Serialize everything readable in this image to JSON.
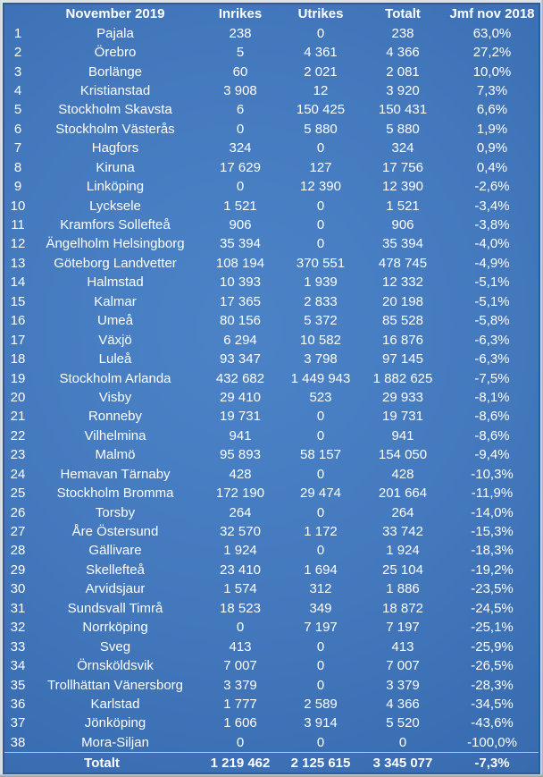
{
  "colors": {
    "table_fill_center": "#4c83c7",
    "table_fill_edge": "#33639f",
    "inner_border": "#2d5c9e",
    "outer_border": "#dce3ec",
    "text": "#ffffff"
  },
  "chart_data": {
    "type": "table",
    "title": "November 2019",
    "columns": [
      "",
      "November 2019",
      "Inrikes",
      "Utrikes",
      "Totalt",
      "Jmf nov 2018"
    ],
    "rows": [
      [
        "1",
        "Pajala",
        "238",
        "0",
        "238",
        "63,0%"
      ],
      [
        "2",
        "Örebro",
        "5",
        "4 361",
        "4 366",
        "27,2%"
      ],
      [
        "3",
        "Borlänge",
        "60",
        "2 021",
        "2 081",
        "10,0%"
      ],
      [
        "4",
        "Kristianstad",
        "3 908",
        "12",
        "3 920",
        "7,3%"
      ],
      [
        "5",
        "Stockholm Skavsta",
        "6",
        "150 425",
        "150 431",
        "6,6%"
      ],
      [
        "6",
        "Stockholm Västerås",
        "0",
        "5 880",
        "5 880",
        "1,9%"
      ],
      [
        "7",
        "Hagfors",
        "324",
        "0",
        "324",
        "0,9%"
      ],
      [
        "8",
        "Kiruna",
        "17 629",
        "127",
        "17 756",
        "0,4%"
      ],
      [
        "9",
        "Linköping",
        "0",
        "12 390",
        "12 390",
        "-2,6%"
      ],
      [
        "10",
        "Lycksele",
        "1 521",
        "0",
        "1 521",
        "-3,4%"
      ],
      [
        "11",
        "Kramfors Sollefteå",
        "906",
        "0",
        "906",
        "-3,8%"
      ],
      [
        "12",
        "Ängelholm Helsingborg",
        "35 394",
        "0",
        "35 394",
        "-4,0%"
      ],
      [
        "13",
        "Göteborg Landvetter",
        "108 194",
        "370 551",
        "478 745",
        "-4,9%"
      ],
      [
        "14",
        "Halmstad",
        "10 393",
        "1 939",
        "12 332",
        "-5,1%"
      ],
      [
        "15",
        "Kalmar",
        "17 365",
        "2 833",
        "20 198",
        "-5,1%"
      ],
      [
        "16",
        "Umeå",
        "80 156",
        "5 372",
        "85 528",
        "-5,8%"
      ],
      [
        "17",
        "Växjö",
        "6 294",
        "10 582",
        "16 876",
        "-6,3%"
      ],
      [
        "18",
        "Luleå",
        "93 347",
        "3 798",
        "97 145",
        "-6,3%"
      ],
      [
        "19",
        "Stockholm Arlanda",
        "432 682",
        "1 449 943",
        "1 882 625",
        "-7,5%"
      ],
      [
        "20",
        "Visby",
        "29 410",
        "523",
        "29 933",
        "-8,1%"
      ],
      [
        "21",
        "Ronneby",
        "19 731",
        "0",
        "19 731",
        "-8,6%"
      ],
      [
        "22",
        "Vilhelmina",
        "941",
        "0",
        "941",
        "-8,6%"
      ],
      [
        "23",
        "Malmö",
        "95 893",
        "58 157",
        "154 050",
        "-9,4%"
      ],
      [
        "24",
        "Hemavan Tärnaby",
        "428",
        "0",
        "428",
        "-10,3%"
      ],
      [
        "25",
        "Stockholm Bromma",
        "172 190",
        "29 474",
        "201 664",
        "-11,9%"
      ],
      [
        "26",
        "Torsby",
        "264",
        "0",
        "264",
        "-14,0%"
      ],
      [
        "27",
        "Åre Östersund",
        "32 570",
        "1 172",
        "33 742",
        "-15,3%"
      ],
      [
        "28",
        "Gällivare",
        "1 924",
        "0",
        "1 924",
        "-18,3%"
      ],
      [
        "29",
        "Skellefteå",
        "23 410",
        "1 694",
        "25 104",
        "-19,2%"
      ],
      [
        "30",
        "Arvidsjaur",
        "1 574",
        "312",
        "1 886",
        "-23,5%"
      ],
      [
        "31",
        "Sundsvall Timrå",
        "18 523",
        "349",
        "18 872",
        "-24,5%"
      ],
      [
        "32",
        "Norrköping",
        "0",
        "7 197",
        "7 197",
        "-25,1%"
      ],
      [
        "33",
        "Sveg",
        "413",
        "0",
        "413",
        "-25,9%"
      ],
      [
        "34",
        "Örnsköldsvik",
        "7 007",
        "0",
        "7 007",
        "-26,5%"
      ],
      [
        "35",
        "Trollhättan Vänersborg",
        "3 379",
        "0",
        "3 379",
        "-28,3%"
      ],
      [
        "36",
        "Karlstad",
        "1 777",
        "2 589",
        "4 366",
        "-34,5%"
      ],
      [
        "37",
        "Jönköping",
        "1 606",
        "3 914",
        "5 520",
        "-43,6%"
      ],
      [
        "38",
        "Mora-Siljan",
        "0",
        "0",
        "0",
        "-100,0%"
      ]
    ],
    "total_row": {
      "label": "Totalt",
      "inrikes": "1 219 462",
      "utrikes": "2 125 615",
      "totalt": "3 345 077",
      "jmf": "-7,3%"
    }
  }
}
